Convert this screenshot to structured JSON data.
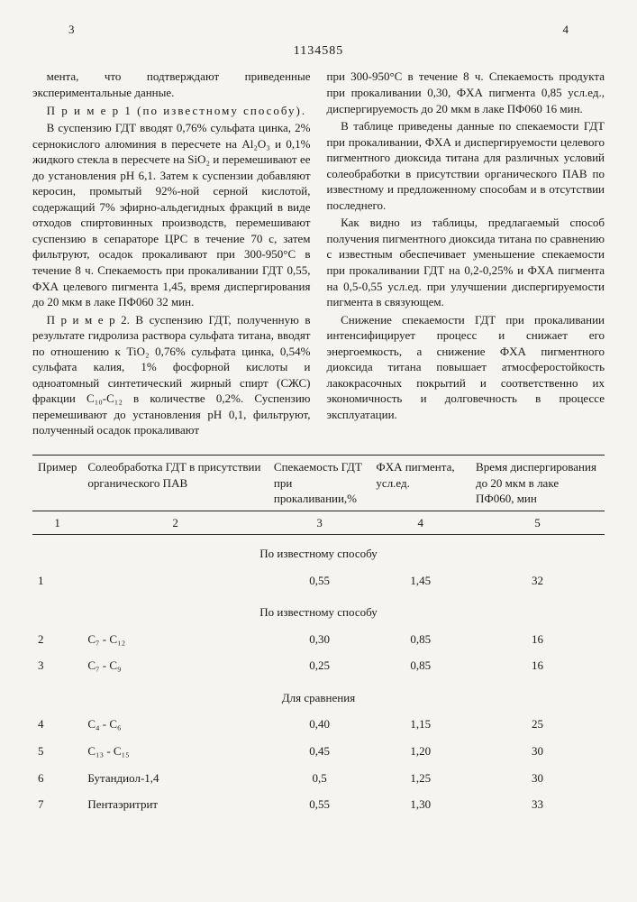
{
  "page_left": "3",
  "doc_number": "1134585",
  "page_right": "4",
  "left_column": [
    "мента, что подтверждают приведенные экспериментальные данные.",
    "П р и м е р  1 (по известному способу).",
    "В суспензию ГДТ вводят 0,76% сульфата цинка, 2% сернокислого алюминия в пересчете на Al₂O₃ и 0,1% жидкого стекла в пересчете на SiO₂ и перемешивают ее до установления pH 6,1. Затем к суспензии добавляют керосин, промытый 92%-ной серной кислотой, содержащий 7% эфирно-альдегидных фракций в виде отходов спиртовинных производств, перемешивают суспензию в сепараторе ЦРС в течение 70 с, затем фильтруют, осадок прокаливают при 300-950°С в течение 8 ч. Спекаемость при прокаливании ГДТ 0,55, ФХА целевого пигмента 1,45, время диспергирования до 20 мкм в лаке ПФ060 32 мин.",
    "П р и м е р  2. В суспензию ГДТ, полученную в результате гидролиза раствора сульфата титана, вводят по отношению к TiO₂ 0,76% сульфата цинка, 0,54% сульфата калия, 1% фосфорной кислоты и одноатомный синтетический жирный спирт (СЖС) фракции C₁₀-C₁₂ в количестве 0,2%. Суспензию перемешивают до установления pH 0,1, фильтруют, полученный осадок прокаливают"
  ],
  "right_column": [
    "при 300-950°С в течение 8 ч. Спекаемость продукта при прокаливании 0,30, ФХА пигмента 0,85 усл.ед., диспергируемость до 20 мкм в лаке ПФ060 16 мин.",
    "В таблице приведены данные по спекаемости ГДТ при прокаливании, ФХА и диспергируемости целевого пигментного диоксида титана для различных условий солеобработки в присутствии органического ПАВ по известному и предложенному способам и в отсутствии последнего.",
    "Как видно из таблицы, предлагаемый способ получения пигментного диоксида титана по сравнению с известным обеспечивает уменьшение спекаемости при прокаливании ГДТ на 0,2-0,25% и ФХА пигмента на 0,5-0,55 усл.ед. при улучшении диспергируемости пигмента в связующем.",
    "Снижение спекаемости ГДТ при прокаливании интенсифицирует процесс и снижает его энергоемкость, а снижение ФХА пигментного диоксида титана повышает атмосферостойкость лакокрасочных покрытий и соответственно их экономичность и долговечность в процессе эксплуатации."
  ],
  "table": {
    "headers": [
      "Пример",
      "Солеобработка ГДТ в присутствии органического ПАВ",
      "Спекаемость ГДТ при прокаливании,%",
      "ФХА пигмента, усл.ед.",
      "Время диспергирования до 20 мкм в лаке ПФ060, мин"
    ],
    "colnums": [
      "1",
      "2",
      "3",
      "4",
      "5"
    ],
    "sections": [
      {
        "title": "По известному способу",
        "rows": [
          {
            "n": "1",
            "c2": "",
            "c3": "0,55",
            "c4": "1,45",
            "c5": "32"
          }
        ]
      },
      {
        "title": "По известному способу",
        "rows": [
          {
            "n": "2",
            "c2": "C₇ - C₁₂",
            "c3": "0,30",
            "c4": "0,85",
            "c5": "16"
          },
          {
            "n": "3",
            "c2": "C₇ - C₉",
            "c3": "0,25",
            "c4": "0,85",
            "c5": "16"
          }
        ]
      },
      {
        "title": "Для сравнения",
        "rows": [
          {
            "n": "4",
            "c2": "C₄ - C₆",
            "c3": "0,40",
            "c4": "1,15",
            "c5": "25"
          },
          {
            "n": "5",
            "c2": "C₁₃ - C₁₅",
            "c3": "0,45",
            "c4": "1,20",
            "c5": "30"
          },
          {
            "n": "6",
            "c2": "Бутандиол-1,4",
            "c3": "0,5",
            "c4": "1,25",
            "c5": "30"
          },
          {
            "n": "7",
            "c2": "Пентаэритрит",
            "c3": "0,55",
            "c4": "1,30",
            "c5": "33"
          }
        ]
      }
    ]
  }
}
